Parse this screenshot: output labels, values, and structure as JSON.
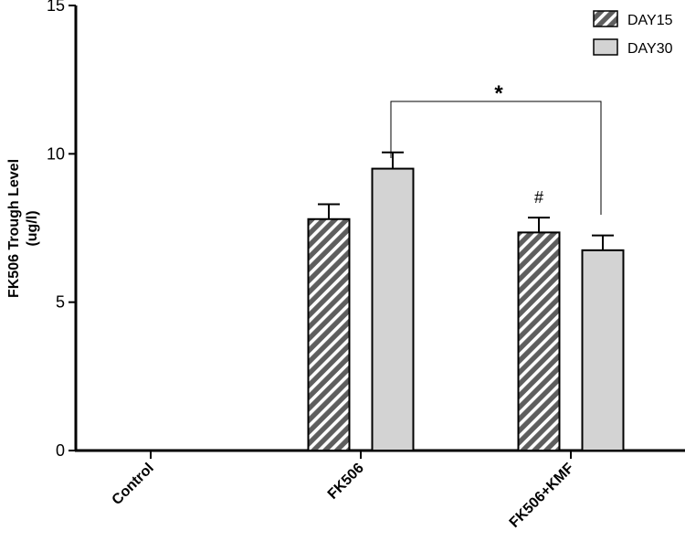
{
  "chart_data": {
    "type": "bar",
    "ylabel_lines": [
      "FK506 Trough Level",
      "(ug/l)"
    ],
    "xlabel": "",
    "ylim": [
      0,
      15
    ],
    "yticks": [
      "0",
      "5",
      "10",
      "15"
    ],
    "categories": [
      "Control",
      "FK506",
      "FK506+KMF"
    ],
    "series": [
      {
        "name": "DAY15",
        "pattern": "hatched",
        "color": "#606060",
        "values": [
          null,
          7.8,
          7.35
        ],
        "errors": [
          null,
          0.5,
          0.5
        ]
      },
      {
        "name": "DAY30",
        "pattern": "solid",
        "color": "#d3d3d3",
        "values": [
          null,
          9.5,
          6.75
        ],
        "errors": [
          null,
          0.55,
          0.5
        ]
      }
    ],
    "annotations": {
      "significance_star": "*",
      "hash_mark": "#"
    },
    "legend_position": "top-right",
    "grid": false
  }
}
